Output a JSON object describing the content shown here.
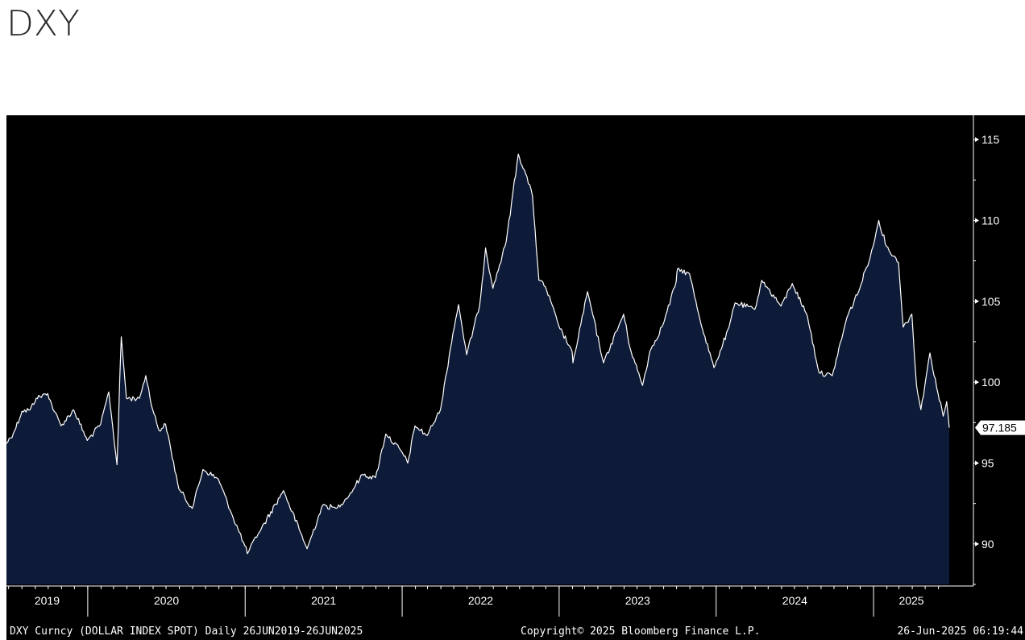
{
  "title": "DXY",
  "footer": {
    "left": "DXY Curncy (DOLLAR INDEX SPOT)  Daily 26JUN2019-26JUN2025",
    "center": "Copyright© 2025 Bloomberg Finance L.P.",
    "right": "26-Jun-2025 06:19:44"
  },
  "chart_data": {
    "type": "area",
    "title": "DXY",
    "xlabel": "",
    "ylabel": "",
    "x_range": [
      "2019-06-26",
      "2025-06-26"
    ],
    "ylim": [
      87.5,
      116.5
    ],
    "y_ticks": [
      90,
      95,
      100,
      105,
      110,
      115
    ],
    "x_tick_labels": [
      "2019",
      "2020",
      "2021",
      "2022",
      "2023",
      "2024",
      "2025"
    ],
    "year_boundaries": [
      "2020-01-01",
      "2021-01-01",
      "2022-01-01",
      "2023-01-01",
      "2024-01-01",
      "2025-01-01"
    ],
    "last_value": "97.185",
    "grid": false,
    "colors": {
      "background": "#000000",
      "fill": "#0e1b38",
      "line": "#ffffff"
    },
    "series": [
      {
        "name": "",
        "points": [
          [
            "2019-06-26",
            96.2
          ],
          [
            "2019-07-15",
            97.0
          ],
          [
            "2019-08-01",
            98.2
          ],
          [
            "2019-08-20",
            98.3
          ],
          [
            "2019-09-03",
            99.0
          ],
          [
            "2019-09-30",
            99.3
          ],
          [
            "2019-10-15",
            98.2
          ],
          [
            "2019-10-31",
            97.3
          ],
          [
            "2019-11-29",
            98.3
          ],
          [
            "2019-12-31",
            96.4
          ],
          [
            "2020-01-31",
            97.4
          ],
          [
            "2020-02-19",
            99.4
          ],
          [
            "2020-03-09",
            94.9
          ],
          [
            "2020-03-19",
            102.8
          ],
          [
            "2020-03-31",
            99.0
          ],
          [
            "2020-04-30",
            99.0
          ],
          [
            "2020-05-15",
            100.4
          ],
          [
            "2020-05-31",
            98.3
          ],
          [
            "2020-06-15",
            97.0
          ],
          [
            "2020-06-30",
            97.4
          ],
          [
            "2020-07-31",
            93.4
          ],
          [
            "2020-08-31",
            92.2
          ],
          [
            "2020-09-25",
            94.6
          ],
          [
            "2020-10-31",
            94.0
          ],
          [
            "2020-11-30",
            91.9
          ],
          [
            "2020-12-31",
            89.9
          ],
          [
            "2021-01-06",
            89.4
          ],
          [
            "2021-01-31",
            90.6
          ],
          [
            "2021-03-31",
            93.3
          ],
          [
            "2021-05-25",
            89.7
          ],
          [
            "2021-06-30",
            92.4
          ],
          [
            "2021-07-31",
            92.2
          ],
          [
            "2021-08-31",
            93.0
          ],
          [
            "2021-09-30",
            94.3
          ],
          [
            "2021-10-31",
            94.1
          ],
          [
            "2021-11-24",
            96.8
          ],
          [
            "2021-12-31",
            95.7
          ],
          [
            "2022-01-14",
            95.0
          ],
          [
            "2022-01-31",
            97.3
          ],
          [
            "2022-02-28",
            96.7
          ],
          [
            "2022-03-31",
            98.3
          ],
          [
            "2022-04-29",
            103.0
          ],
          [
            "2022-05-12",
            104.8
          ],
          [
            "2022-05-31",
            101.7
          ],
          [
            "2022-06-30",
            104.7
          ],
          [
            "2022-07-14",
            108.3
          ],
          [
            "2022-07-31",
            105.8
          ],
          [
            "2022-08-31",
            108.7
          ],
          [
            "2022-09-28",
            114.1
          ],
          [
            "2022-10-15",
            112.9
          ],
          [
            "2022-10-31",
            111.5
          ],
          [
            "2022-11-15",
            106.3
          ],
          [
            "2022-11-30",
            105.9
          ],
          [
            "2022-12-31",
            103.5
          ],
          [
            "2023-01-31",
            101.9
          ],
          [
            "2023-02-02",
            101.2
          ],
          [
            "2023-03-08",
            105.6
          ],
          [
            "2023-04-14",
            101.2
          ],
          [
            "2023-05-31",
            104.2
          ],
          [
            "2023-06-15",
            102.1
          ],
          [
            "2023-07-14",
            99.8
          ],
          [
            "2023-07-31",
            101.9
          ],
          [
            "2023-08-31",
            103.6
          ],
          [
            "2023-09-30",
            106.2
          ],
          [
            "2023-10-03",
            107.0
          ],
          [
            "2023-10-31",
            106.7
          ],
          [
            "2023-11-30",
            103.3
          ],
          [
            "2023-12-27",
            100.9
          ],
          [
            "2024-01-31",
            103.4
          ],
          [
            "2024-02-14",
            104.9
          ],
          [
            "2024-03-31",
            104.5
          ],
          [
            "2024-04-16",
            106.3
          ],
          [
            "2024-05-31",
            104.7
          ],
          [
            "2024-06-26",
            106.1
          ],
          [
            "2024-07-31",
            104.1
          ],
          [
            "2024-08-27",
            100.6
          ],
          [
            "2024-09-27",
            100.4
          ],
          [
            "2024-10-31",
            104.0
          ],
          [
            "2024-11-30",
            105.8
          ],
          [
            "2024-12-31",
            108.4
          ],
          [
            "2025-01-13",
            110.0
          ],
          [
            "2025-01-31",
            108.4
          ],
          [
            "2025-02-28",
            107.4
          ],
          [
            "2025-03-11",
            103.4
          ],
          [
            "2025-03-31",
            104.2
          ],
          [
            "2025-04-11",
            99.8
          ],
          [
            "2025-04-21",
            98.3
          ],
          [
            "2025-05-12",
            101.8
          ],
          [
            "2025-05-31",
            99.3
          ],
          [
            "2025-06-12",
            97.9
          ],
          [
            "2025-06-20",
            98.8
          ],
          [
            "2025-06-26",
            97.185
          ]
        ]
      }
    ]
  }
}
